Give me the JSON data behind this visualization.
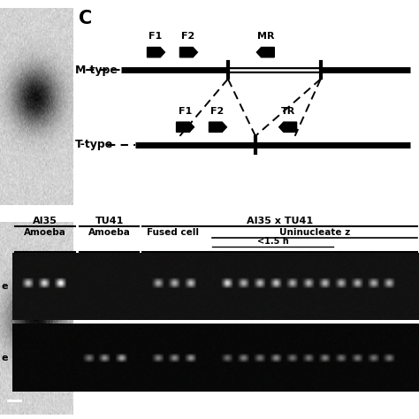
{
  "panel_c_label": "C",
  "m_type_label": "M-type",
  "t_type_label": "T-type",
  "m_primers": [
    "F1",
    "F2",
    "MR"
  ],
  "t_primers": [
    "F1",
    "F2",
    "TR"
  ],
  "gel_header_group1": "AI35",
  "gel_header_group2": "TU41",
  "gel_header_group3": "AI35 x TU41",
  "gel_sub1": "Amoeba",
  "gel_sub2": "Amoeba",
  "gel_sub3": "Fused cell",
  "gel_sub4": "Uninucleate z",
  "gel_sub5": "<1.5 h",
  "gel_label_m": "e",
  "gel_label_t": "e",
  "fig_width": 4.74,
  "fig_height": 4.74,
  "dpi": 100
}
